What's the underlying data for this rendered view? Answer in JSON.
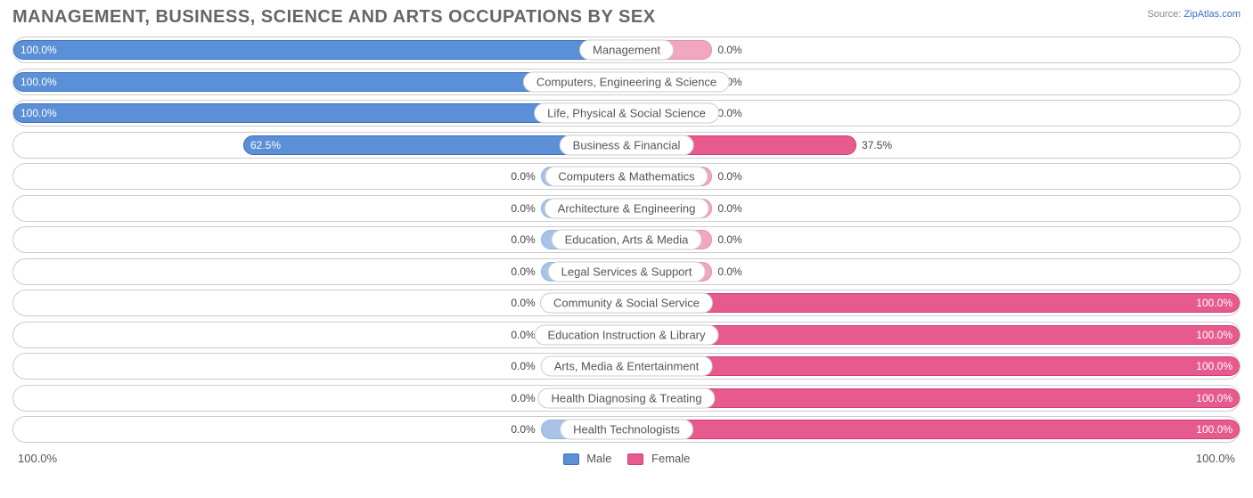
{
  "title": "MANAGEMENT, BUSINESS, SCIENCE AND ARTS OCCUPATIONS BY SEX",
  "source": {
    "label": "Source:",
    "name": "ZipAtlas.com"
  },
  "colors": {
    "male_fill": "#5b8fd6",
    "male_border": "#3b6fc9",
    "male_faded_fill": "#a9c3e8",
    "male_faded_border": "#8fb0de",
    "female_fill": "#e75a8d",
    "female_border": "#d63c74",
    "female_faded_fill": "#f2a6c0",
    "female_faded_border": "#ea8aad",
    "row_border": "#cccccc",
    "text": "#555555",
    "title_color": "#666666",
    "bg": "#ffffff"
  },
  "chart": {
    "default_bar_pct": 14,
    "axis_left": "100.0%",
    "axis_right": "100.0%",
    "legend": {
      "male": "Male",
      "female": "Female"
    },
    "rows": [
      {
        "label": "Management",
        "male": 100.0,
        "female": 0.0
      },
      {
        "label": "Computers, Engineering & Science",
        "male": 100.0,
        "female": 0.0
      },
      {
        "label": "Life, Physical & Social Science",
        "male": 100.0,
        "female": 0.0
      },
      {
        "label": "Business & Financial",
        "male": 62.5,
        "female": 37.5
      },
      {
        "label": "Computers & Mathematics",
        "male": 0.0,
        "female": 0.0
      },
      {
        "label": "Architecture & Engineering",
        "male": 0.0,
        "female": 0.0
      },
      {
        "label": "Education, Arts & Media",
        "male": 0.0,
        "female": 0.0
      },
      {
        "label": "Legal Services & Support",
        "male": 0.0,
        "female": 0.0
      },
      {
        "label": "Community & Social Service",
        "male": 0.0,
        "female": 100.0
      },
      {
        "label": "Education Instruction & Library",
        "male": 0.0,
        "female": 100.0
      },
      {
        "label": "Arts, Media & Entertainment",
        "male": 0.0,
        "female": 100.0
      },
      {
        "label": "Health Diagnosing & Treating",
        "male": 0.0,
        "female": 100.0
      },
      {
        "label": "Health Technologists",
        "male": 0.0,
        "female": 100.0
      }
    ]
  }
}
